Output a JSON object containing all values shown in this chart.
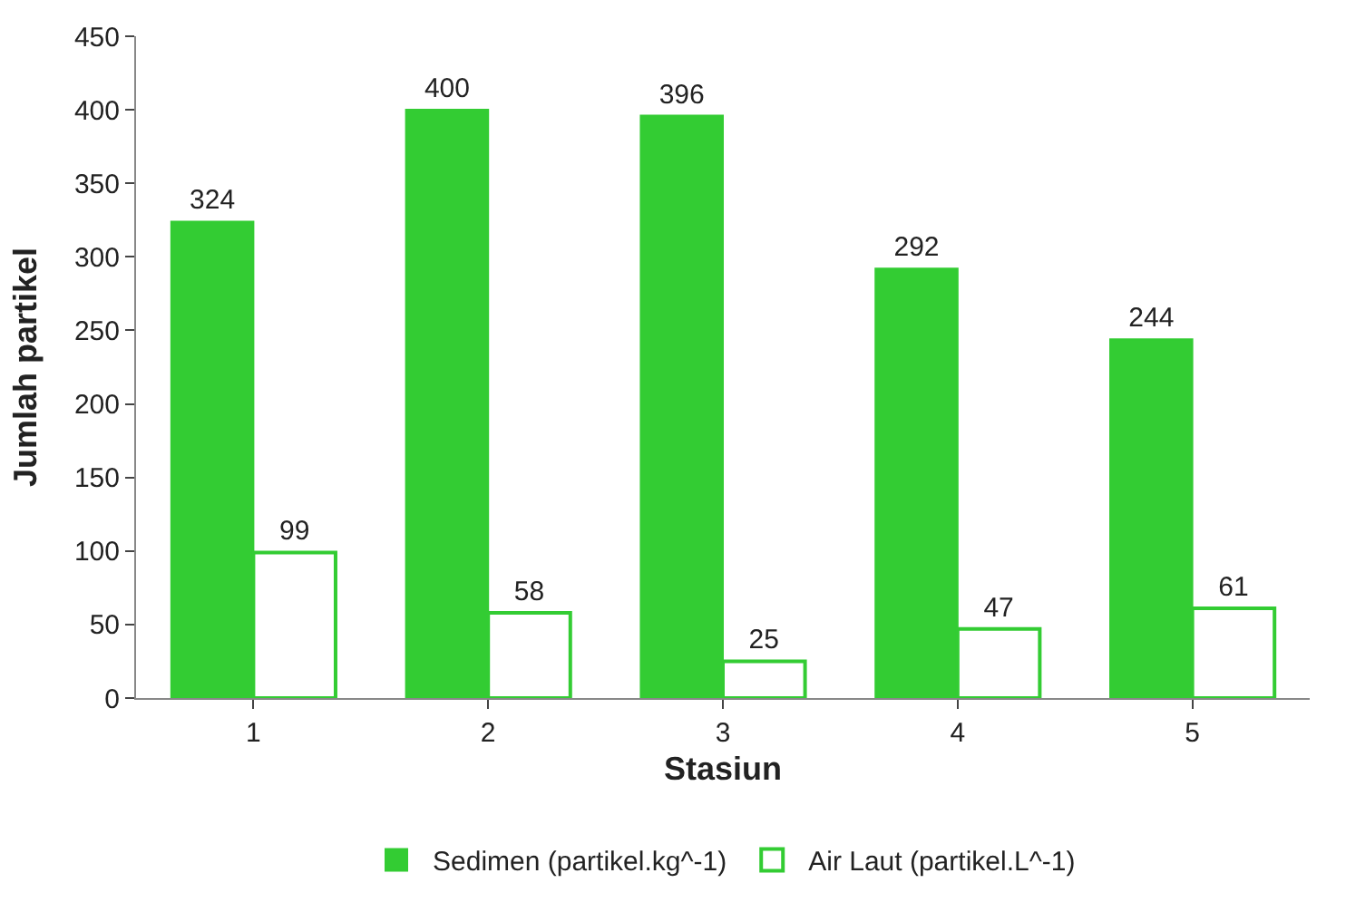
{
  "chart_data": {
    "type": "bar",
    "xlabel": "Stasiun",
    "ylabel": "Jumlah partikel",
    "categories": [
      "1",
      "2",
      "3",
      "4",
      "5"
    ],
    "series": [
      {
        "name": "Sedimen (partikel.kg^-1)",
        "color": "#33cc33",
        "values": [
          324,
          400,
          396,
          292,
          244
        ]
      },
      {
        "name": "Air Laut (partikel.L^-1)",
        "color": "#33cc33",
        "values": [
          99,
          58,
          25,
          47,
          61
        ]
      }
    ],
    "ylim": [
      0,
      450
    ],
    "yticks": [
      0,
      50,
      100,
      150,
      200,
      250,
      300,
      350,
      400,
      450
    ],
    "data_labels": true,
    "legend": "bottom"
  }
}
